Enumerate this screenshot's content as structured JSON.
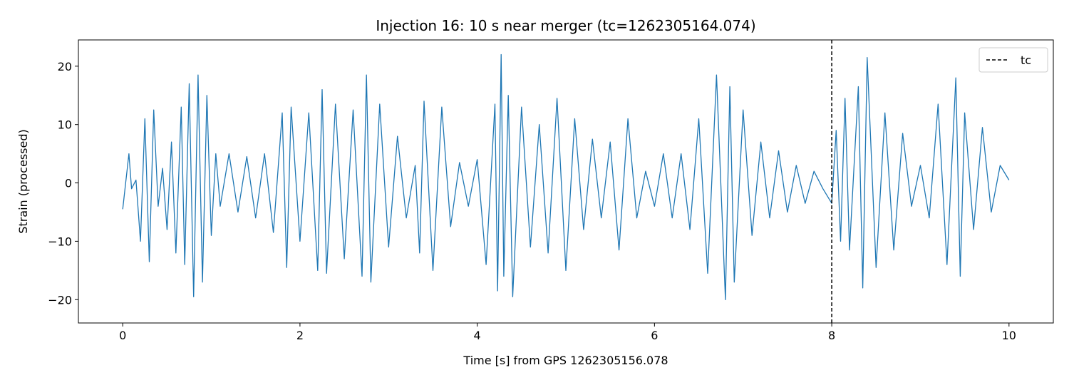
{
  "chart_data": {
    "type": "line",
    "title": "Injection 16: 10 s near merger (tc=1262305164.074)",
    "xlabel": "Time [s] from GPS 1262305156.078",
    "ylabel": "Strain (processed)",
    "xlim": [
      -0.5,
      10.5
    ],
    "ylim": [
      -24,
      24.5
    ],
    "xticks": [
      0,
      2,
      4,
      6,
      8,
      10
    ],
    "xtick_labels": [
      "0",
      "2",
      "4",
      "6",
      "8",
      "10"
    ],
    "yticks": [
      -20,
      -10,
      0,
      10,
      20
    ],
    "ytick_labels": [
      "−20",
      "−10",
      "0",
      "10",
      "20"
    ],
    "grid": false,
    "legend": {
      "location": "upper right",
      "entries": [
        "tc"
      ]
    },
    "series": [
      {
        "style": "solid",
        "color": "#1f77b4",
        "x": [
          0.0,
          0.07,
          0.1,
          0.15,
          0.2,
          0.25,
          0.3,
          0.35,
          0.4,
          0.45,
          0.5,
          0.55,
          0.6,
          0.66,
          0.7,
          0.75,
          0.8,
          0.85,
          0.9,
          0.95,
          1.0,
          1.05,
          1.1,
          1.2,
          1.3,
          1.4,
          1.5,
          1.6,
          1.7,
          1.8,
          1.85,
          1.9,
          2.0,
          2.1,
          2.2,
          2.25,
          2.3,
          2.4,
          2.5,
          2.6,
          2.7,
          2.75,
          2.8,
          2.9,
          3.0,
          3.1,
          3.2,
          3.3,
          3.35,
          3.4,
          3.5,
          3.6,
          3.7,
          3.8,
          3.9,
          4.0,
          4.1,
          4.2,
          4.23,
          4.27,
          4.3,
          4.35,
          4.4,
          4.5,
          4.6,
          4.7,
          4.8,
          4.9,
          5.0,
          5.1,
          5.2,
          5.3,
          5.4,
          5.5,
          5.6,
          5.7,
          5.8,
          5.9,
          6.0,
          6.1,
          6.2,
          6.3,
          6.4,
          6.5,
          6.6,
          6.7,
          6.8,
          6.85,
          6.9,
          7.0,
          7.1,
          7.2,
          7.3,
          7.4,
          7.5,
          7.6,
          7.7,
          7.8,
          7.9,
          8.0,
          8.05,
          8.1,
          8.15,
          8.2,
          8.3,
          8.35,
          8.4,
          8.5,
          8.6,
          8.7,
          8.8,
          8.9,
          9.0,
          9.1,
          9.2,
          9.3,
          9.4,
          9.45,
          9.5,
          9.6,
          9.7,
          9.8,
          9.9,
          10.0
        ],
        "y": [
          -4.5,
          5.0,
          -1.0,
          0.5,
          -10.0,
          11.0,
          -13.5,
          12.5,
          -4.0,
          2.5,
          -8.0,
          7.0,
          -12.0,
          13.0,
          -14.0,
          17.0,
          -19.5,
          18.5,
          -17.0,
          15.0,
          -9.0,
          5.0,
          -4.0,
          5.0,
          -5.0,
          4.5,
          -6.0,
          5.0,
          -8.5,
          12.0,
          -14.5,
          13.0,
          -10.0,
          12.0,
          -15.0,
          16.0,
          -15.5,
          13.5,
          -13.0,
          12.5,
          -16.0,
          18.5,
          -17.0,
          13.5,
          -11.0,
          8.0,
          -6.0,
          3.0,
          -12.0,
          14.0,
          -15.0,
          13.0,
          -7.5,
          3.5,
          -4.0,
          4.0,
          -14.0,
          13.5,
          -18.5,
          22.0,
          -16.0,
          15.0,
          -19.5,
          13.0,
          -11.0,
          10.0,
          -12.0,
          14.5,
          -15.0,
          11.0,
          -8.0,
          7.5,
          -6.0,
          7.0,
          -11.5,
          11.0,
          -6.0,
          2.0,
          -4.0,
          5.0,
          -6.0,
          5.0,
          -8.0,
          11.0,
          -15.5,
          18.5,
          -20.0,
          16.5,
          -17.0,
          12.5,
          -9.0,
          7.0,
          -6.0,
          5.5,
          -5.0,
          3.0,
          -3.5,
          2.0,
          -1.0,
          -3.5,
          9.0,
          -10.0,
          14.5,
          -11.5,
          16.5,
          -18.0,
          21.5,
          -14.5,
          12.0,
          -11.5,
          8.5,
          -4.0,
          3.0,
          -6.0,
          13.5,
          -14.0,
          18.0,
          -16.0,
          12.0,
          -8.0,
          9.5,
          -5.0,
          3.0,
          0.5
        ]
      },
      {
        "name": "tc",
        "style": "dashed",
        "color": "#000000",
        "x": [
          8.0,
          8.0
        ],
        "y": [
          -24,
          24.5
        ]
      }
    ]
  }
}
